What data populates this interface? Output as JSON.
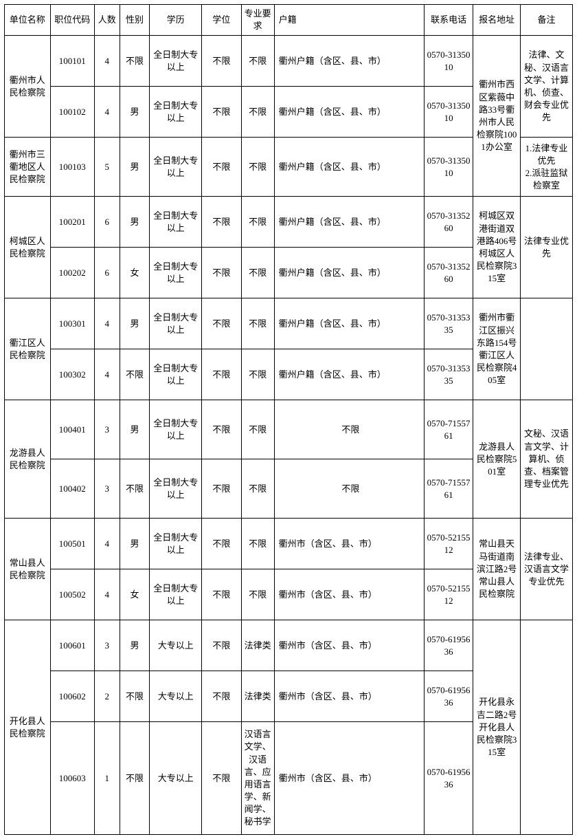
{
  "columns": [
    "单位名称",
    "职位代码",
    "人数",
    "性别",
    "学历",
    "学位",
    "专业要求",
    "户籍",
    "联系电话",
    "报名地址",
    "备注"
  ],
  "col_classes": [
    "col-0",
    "col-1",
    "col-2",
    "col-3",
    "col-4",
    "col-5",
    "col-6",
    "col-7",
    "col-8",
    "col-9",
    "col-10"
  ],
  "groups": [
    {
      "unit": "衢州市人民检察院",
      "unitRowspan": 2,
      "address": "衢州市西区紫薇中路33号衢州市人民检察院1001办公室",
      "addrRowspan": 3,
      "remark": "法律、文秘、汉语言文学、计算机、侦查、财会专业优先",
      "remarkRowspan": 2,
      "rows": [
        {
          "code": "100101",
          "num": "4",
          "sex": "不限",
          "edu": "全日制大专以上",
          "deg": "不限",
          "maj": "不限",
          "huji": "衢州户籍（含区、县、市）",
          "tel": "0570-3135010",
          "rowClass": "tall"
        },
        {
          "code": "100102",
          "num": "4",
          "sex": "男",
          "edu": "全日制大专以上",
          "deg": "不限",
          "maj": "不限",
          "huji": "衢州户籍（含区、县、市）",
          "tel": "0570-3135010",
          "rowClass": "tall"
        }
      ]
    },
    {
      "unit": "衢州市三衢地区人民检察院",
      "unitRowspan": 1,
      "remark": "1.法律专业优先\n2.派驻监狱检察室",
      "remarkRowspan": 1,
      "rows": [
        {
          "code": "100103",
          "num": "5",
          "sex": "男",
          "edu": "全日制大专以上",
          "deg": "不限",
          "maj": "不限",
          "huji": "衢州户籍（含区、县、市）",
          "tel": "0570-3135010",
          "rowClass": "taller"
        }
      ]
    },
    {
      "unit": "柯城区人民检察院",
      "unitRowspan": 2,
      "address": "柯城区双港街道双港路406号柯城区人民检察院315室",
      "addrRowspan": 2,
      "remark": "法律专业优先",
      "remarkRowspan": 2,
      "rows": [
        {
          "code": "100201",
          "num": "6",
          "sex": "男",
          "edu": "全日制大专以上",
          "deg": "不限",
          "maj": "不限",
          "huji": "衢州户籍（含区、县、市）",
          "tel": "0570-3135260",
          "rowClass": "tall"
        },
        {
          "code": "100202",
          "num": "6",
          "sex": "女",
          "edu": "全日制大专以上",
          "deg": "不限",
          "maj": "不限",
          "huji": "衢州户籍（含区、县、市）",
          "tel": "0570-3135260",
          "rowClass": "tall"
        }
      ]
    },
    {
      "unit": "衢江区人民检察院",
      "unitRowspan": 2,
      "address": "衢州市衢江区振兴东路154号衢江区人民检察院405室",
      "addrRowspan": 2,
      "remark": "",
      "remarkRowspan": 2,
      "rows": [
        {
          "code": "100301",
          "num": "4",
          "sex": "男",
          "edu": "全日制大专以上",
          "deg": "不限",
          "maj": "不限",
          "huji": "衢州户籍（含区、县、市）",
          "tel": "0570-3135335",
          "rowClass": "tall"
        },
        {
          "code": "100302",
          "num": "4",
          "sex": "不限",
          "edu": "全日制大专以上",
          "deg": "不限",
          "maj": "不限",
          "huji": "衢州户籍（含区、县、市）",
          "tel": "0570-3135335",
          "rowClass": "tall"
        }
      ]
    },
    {
      "unit": "龙游县人民检察院",
      "unitRowspan": 2,
      "address": "龙游县人民检察院501室",
      "addrRowspan": 2,
      "remark": "文秘、汉语言文学、计算机、侦查、档案管理专业优先",
      "remarkRowspan": 2,
      "rows": [
        {
          "code": "100401",
          "num": "3",
          "sex": "男",
          "edu": "全日制大专以上",
          "deg": "不限",
          "maj": "不限",
          "huji": "不限",
          "hujiCenter": true,
          "tel": "0570-7155761",
          "rowClass": "taller"
        },
        {
          "code": "100402",
          "num": "3",
          "sex": "不限",
          "edu": "全日制大专以上",
          "deg": "不限",
          "maj": "不限",
          "huji": "不限",
          "hujiCenter": true,
          "tel": "0570-7155761",
          "rowClass": "taller"
        }
      ]
    },
    {
      "unit": "常山县人民检察院",
      "unitRowspan": 2,
      "address": "常山县天马街道南滨江路2号 常山县人民检察院",
      "addrRowspan": 2,
      "remark": "法律专业、汉语言文学专业优先",
      "remarkRowspan": 2,
      "rows": [
        {
          "code": "100501",
          "num": "4",
          "sex": "男",
          "edu": "全日制大专以上",
          "deg": "不限",
          "maj": "不限",
          "huji": "衢州市（含区、县、市）",
          "tel": "0570-5215512",
          "rowClass": "tall"
        },
        {
          "code": "100502",
          "num": "4",
          "sex": "女",
          "edu": "全日制大专以上",
          "deg": "不限",
          "maj": "不限",
          "huji": "衢州市（含区、县、市）",
          "tel": "0570-5215512",
          "rowClass": "tall"
        }
      ]
    },
    {
      "unit": "开化县人民检察院",
      "unitRowspan": 3,
      "address": "开化县永吉二路2号开化县人民检察院315室",
      "addrRowspan": 3,
      "remark": "",
      "remarkRowspan": 3,
      "rows": [
        {
          "code": "100601",
          "num": "3",
          "sex": "男",
          "edu": "大专以上",
          "deg": "不限",
          "maj": "法律类",
          "huji": "衢州市（含区、县、市）",
          "tel": "0570-6195636",
          "rowClass": "tall"
        },
        {
          "code": "100602",
          "num": "2",
          "sex": "不限",
          "edu": "大专以上",
          "deg": "不限",
          "maj": "法律类",
          "huji": "衢州市（含区、县、市）",
          "tel": "0570-6195636",
          "rowClass": "tall"
        },
        {
          "code": "100603",
          "num": "1",
          "sex": "不限",
          "edu": "大专以上",
          "deg": "不限",
          "maj": "汉语言文学、汉语言、应用语言学、新闻学、秘书学",
          "huji": "衢州市（含区、县、市）",
          "tel": "0570-6195636",
          "rowClass": "tallest"
        }
      ]
    }
  ]
}
